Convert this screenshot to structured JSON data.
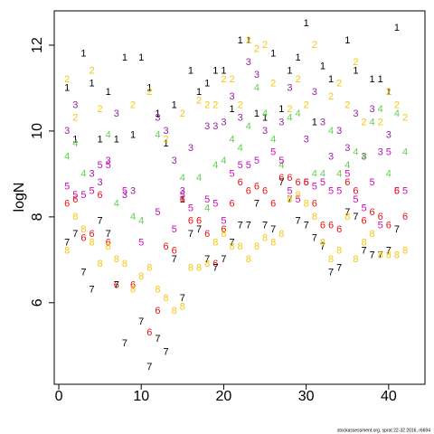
{
  "chart_data": {
    "type": "scatter",
    "y_label": "logN",
    "footnote": "stockassessment.org, sprat 22-32 2016, r6694",
    "xlim": [
      -0.55,
      44.4
    ],
    "ylim": [
      4.1,
      12.8
    ],
    "xticks": [
      0,
      10,
      20,
      30,
      40
    ],
    "yticks": [
      6,
      8,
      10,
      12
    ],
    "series": [
      {
        "name": "1",
        "color": "#000000",
        "x": [
          1,
          2,
          3,
          4,
          5,
          6,
          7,
          8,
          9,
          10,
          11,
          12,
          13,
          14,
          15,
          16,
          17,
          18,
          19,
          20,
          21,
          22,
          23,
          24,
          25,
          26,
          27,
          28,
          29,
          30,
          31,
          32,
          33,
          35,
          36,
          38,
          39,
          40,
          41
        ],
        "values": [
          11.0,
          9.8,
          11.8,
          11.1,
          9.8,
          10.9,
          9.8,
          11.7,
          9.9,
          11.7,
          11.0,
          10.4,
          9.7,
          10.6,
          8.4,
          11.4,
          10.9,
          11.1,
          11.4,
          11.4,
          10.5,
          12.1,
          12.1,
          10.4,
          10.3,
          11.8,
          10.5,
          11.4,
          11.7,
          12.5,
          10.2,
          11.5,
          11.2,
          12.1,
          11.4,
          11.2,
          11.2,
          10.9,
          12.4
        ]
      },
      {
        "name": "2",
        "color": "#f5c710",
        "x": [
          1,
          2,
          4,
          5,
          9,
          11,
          13,
          15,
          17,
          18,
          19,
          20,
          21,
          22,
          23,
          24,
          25,
          26,
          28,
          29,
          30,
          31,
          33,
          34,
          35,
          36,
          37,
          39,
          40,
          41,
          42
        ],
        "values": [
          11.2,
          10.3,
          11.4,
          10.5,
          10.6,
          10.9,
          9.8,
          10.4,
          10.7,
          10.6,
          10.6,
          11.2,
          11.2,
          10.6,
          12.1,
          11.9,
          12.0,
          11.1,
          10.5,
          11.2,
          10.6,
          12.0,
          10.8,
          11.1,
          10.6,
          11.6,
          10.2,
          10.2,
          10.9,
          10.6,
          10.3
        ]
      },
      {
        "name": "3",
        "color": "#9a1fa6",
        "x": [
          1,
          2,
          4,
          5,
          6,
          7,
          8,
          9,
          12,
          13,
          14,
          15,
          16,
          18,
          19,
          20,
          21,
          22,
          23,
          24,
          25,
          27,
          28,
          30,
          31,
          32,
          33,
          34,
          35,
          36,
          37,
          38,
          39,
          40
        ],
        "values": [
          10.0,
          10.6,
          9.0,
          8.8,
          9.3,
          10.4,
          8.5,
          8.6,
          10.3,
          10.0,
          9.3,
          8.6,
          9.6,
          10.1,
          10.1,
          10.2,
          10.8,
          10.3,
          11.6,
          11.3,
          10.0,
          10.2,
          11.0,
          9.8,
          10.9,
          10.2,
          9.4,
          10.0,
          9.6,
          10.4,
          9.4,
          10.5,
          9.5,
          9.9
        ]
      },
      {
        "name": "4",
        "color": "#61d04f",
        "x": [
          1,
          2,
          3,
          6,
          7,
          9,
          10,
          12,
          15,
          17,
          18,
          19,
          20,
          21,
          22,
          23,
          24,
          25,
          26,
          27,
          28,
          29,
          31,
          32,
          33,
          34,
          35,
          36,
          37,
          38,
          39,
          40,
          41,
          42
        ],
        "values": [
          9.4,
          9.7,
          9.0,
          9.9,
          8.3,
          8.0,
          7.9,
          9.9,
          8.9,
          8.9,
          8.2,
          9.2,
          9.3,
          9.8,
          9.6,
          10.1,
          11.0,
          10.4,
          9.8,
          9.2,
          10.3,
          10.4,
          9.0,
          9.0,
          10.0,
          9.0,
          9.2,
          9.5,
          9.4,
          10.2,
          10.5,
          9.0,
          10.4,
          9.5
        ]
      },
      {
        "name": "5",
        "color": "#cd0bbc",
        "x": [
          1,
          2,
          3,
          4,
          5,
          6,
          8,
          10,
          12,
          14,
          15,
          16,
          18,
          19,
          20,
          21,
          22,
          23,
          24,
          26,
          27,
          28,
          29,
          30,
          31,
          32,
          33,
          34,
          35,
          36,
          37,
          38,
          39,
          40,
          41,
          42
        ],
        "values": [
          8.7,
          8.5,
          8.5,
          8.6,
          9.2,
          9.2,
          8.6,
          7.4,
          8.1,
          7.7,
          8.5,
          8.2,
          8.4,
          8.3,
          7.9,
          9.0,
          9.2,
          9.2,
          9.3,
          9.5,
          9.3,
          8.6,
          8.4,
          8.8,
          8.7,
          8.8,
          8.6,
          8.6,
          9.0,
          8.4,
          8.2,
          8.8,
          7.8,
          9.5,
          8.6,
          8.6
        ]
      },
      {
        "name": "6",
        "color": "#e8110f",
        "x": [
          1,
          2,
          3,
          4,
          5,
          6,
          7,
          9,
          11,
          12,
          13,
          14,
          15,
          16,
          17,
          18,
          19,
          20,
          21,
          22,
          23,
          24,
          25,
          26,
          27,
          28,
          29,
          30,
          31,
          32,
          33,
          34,
          35,
          36,
          37,
          38,
          39,
          40,
          41,
          42
        ],
        "values": [
          8.3,
          8.4,
          7.5,
          7.6,
          8.5,
          7.4,
          6.4,
          6.4,
          5.3,
          5.8,
          7.3,
          7.2,
          8.4,
          7.9,
          7.9,
          7.6,
          6.9,
          7.7,
          8.3,
          8.8,
          8.6,
          8.7,
          8.6,
          8.3,
          8.9,
          8.9,
          8.8,
          8.8,
          8.3,
          7.8,
          7.8,
          7.7,
          8.8,
          8.6,
          7.9,
          8.1,
          8.0,
          7.8,
          8.6,
          8.0
        ]
      },
      {
        "name": "7",
        "color": "#000000",
        "x": [
          1,
          2,
          3,
          4,
          5,
          6,
          7,
          8,
          10,
          11,
          12,
          13,
          14,
          15,
          16,
          17,
          18,
          19,
          20,
          21,
          22,
          23,
          24,
          25,
          26,
          27,
          28,
          29,
          30,
          31,
          32,
          33,
          34,
          35,
          36,
          37,
          38,
          39,
          40,
          41
        ],
        "values": [
          7.4,
          7.6,
          6.7,
          6.3,
          7.9,
          7.6,
          6.4,
          5.05,
          5.55,
          4.5,
          5.15,
          4.85,
          7.0,
          6.1,
          7.6,
          7.7,
          7.0,
          6.8,
          7.0,
          7.4,
          7.8,
          7.8,
          8.3,
          7.8,
          7.7,
          8.8,
          8.4,
          7.9,
          7.8,
          7.5,
          7.3,
          6.7,
          6.8,
          8.1,
          8.0,
          7.2,
          7.1,
          7.1,
          7.2,
          7.7
        ]
      },
      {
        "name": "8",
        "color": "#f5c710",
        "x": [
          1,
          2,
          3,
          4,
          5,
          6,
          7,
          8,
          9,
          10,
          11,
          12,
          13,
          14,
          15,
          16,
          17,
          18,
          19,
          20,
          21,
          22,
          23,
          24,
          25,
          26,
          27,
          28,
          29,
          30,
          31,
          32,
          33,
          34,
          35,
          36,
          37,
          38,
          39,
          40,
          41,
          42
        ],
        "values": [
          7.2,
          8.0,
          7.7,
          7.4,
          6.9,
          7.3,
          7.0,
          6.9,
          6.3,
          6.6,
          6.8,
          6.3,
          6.1,
          5.8,
          5.9,
          6.8,
          6.8,
          6.9,
          7.4,
          7.6,
          7.3,
          7.3,
          7.0,
          7.3,
          7.5,
          7.4,
          7.6,
          8.4,
          8.5,
          8.3,
          8.0,
          7.4,
          7.0,
          7.2,
          8.0,
          7.0,
          7.4,
          7.6,
          7.1,
          7.1,
          7.1,
          7.2
        ]
      }
    ]
  }
}
